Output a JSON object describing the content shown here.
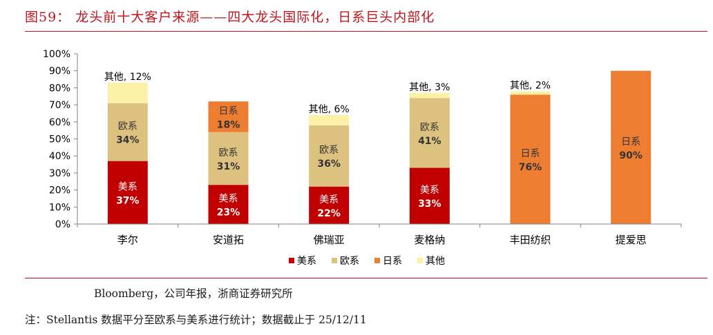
{
  "figure": {
    "title": "图59：   龙头前十大客户来源——四大龙头国际化，日系巨头内部化",
    "source": "Bloomberg，公司年报，浙商证券研究所",
    "note": "注：Stellantis 数据平分至欧系与美系进行统计；数据截止于 25/12/11"
  },
  "colors": {
    "accent": "#c0141b",
    "美系": "#c00000",
    "欧系": "#ddc27f",
    "日系": "#ed7d31",
    "其他": "#fdf1a8"
  },
  "chart_data": {
    "type": "bar",
    "stacked": true,
    "title": "",
    "xlabel": "",
    "ylabel": "",
    "ylim": [
      0,
      100
    ],
    "yticks": [
      0,
      10,
      20,
      30,
      40,
      50,
      60,
      70,
      80,
      90,
      100
    ],
    "ytick_suffix": "%",
    "legend_position": "bottom",
    "categories": [
      "李尔",
      "安道拓",
      "佛瑞亚",
      "麦格纳",
      "丰田纺织",
      "提爱思"
    ],
    "series": [
      {
        "name": "美系",
        "values": [
          37,
          23,
          22,
          33,
          0,
          0
        ]
      },
      {
        "name": "欧系",
        "values": [
          34,
          31,
          36,
          41,
          0,
          0
        ]
      },
      {
        "name": "日系",
        "values": [
          0,
          18,
          0,
          0,
          76,
          90
        ]
      },
      {
        "name": "其他",
        "values": [
          12,
          0,
          6,
          3,
          2,
          0
        ]
      }
    ],
    "labels": [
      {
        "category": "李尔",
        "series": "美系",
        "name": "美系",
        "value": "37%",
        "placement": "inside"
      },
      {
        "category": "李尔",
        "series": "欧系",
        "name": "欧系",
        "value": "34%",
        "placement": "inside"
      },
      {
        "category": "李尔",
        "series": "其他",
        "text": "其他, 12%",
        "placement": "above"
      },
      {
        "category": "安道拓",
        "series": "美系",
        "name": "美系",
        "value": "23%",
        "placement": "inside"
      },
      {
        "category": "安道拓",
        "series": "欧系",
        "name": "欧系",
        "value": "31%",
        "placement": "inside"
      },
      {
        "category": "安道拓",
        "series": "日系",
        "name": "日系",
        "value": "18%",
        "placement": "inside"
      },
      {
        "category": "佛瑞亚",
        "series": "美系",
        "name": "美系",
        "value": "22%",
        "placement": "inside"
      },
      {
        "category": "佛瑞亚",
        "series": "欧系",
        "name": "欧系",
        "value": "36%",
        "placement": "inside"
      },
      {
        "category": "佛瑞亚",
        "series": "其他",
        "text": "其他, 6%",
        "placement": "above"
      },
      {
        "category": "麦格纳",
        "series": "美系",
        "name": "美系",
        "value": "33%",
        "placement": "inside"
      },
      {
        "category": "麦格纳",
        "series": "欧系",
        "name": "欧系",
        "value": "41%",
        "placement": "inside"
      },
      {
        "category": "麦格纳",
        "series": "其他",
        "text": "其他, 3%",
        "placement": "above"
      },
      {
        "category": "丰田纺织",
        "series": "日系",
        "name": "日系",
        "value": "76%",
        "placement": "inside"
      },
      {
        "category": "丰田纺织",
        "series": "其他",
        "text": "其他, 2%",
        "placement": "above"
      },
      {
        "category": "提爱思",
        "series": "日系",
        "name": "日系",
        "value": "90%",
        "placement": "inside"
      }
    ]
  }
}
